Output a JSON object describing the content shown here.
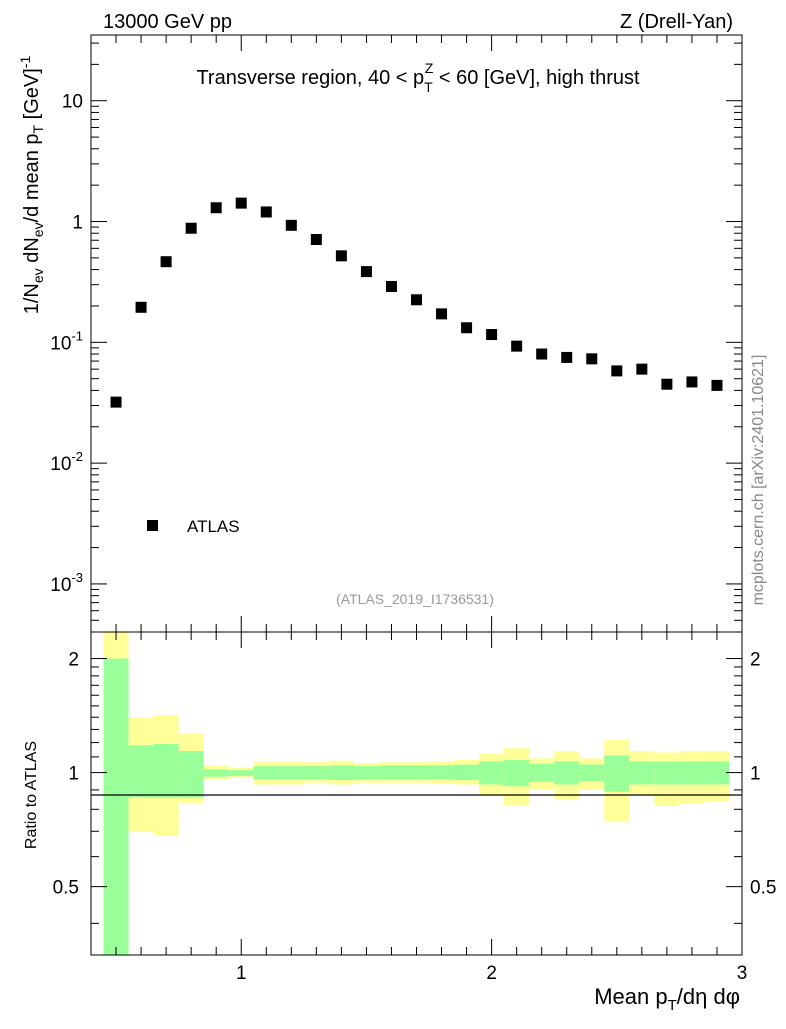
{
  "header": {
    "left": "13000 GeV pp",
    "right": "Z (Drell-Yan)"
  },
  "side_label": "mcplots.cern.ch [arXiv:2401.10621]",
  "reference_label": "(ATLAS_2019_I1736531)",
  "colors": {
    "band_inner": "#99ff99",
    "band_outer": "#ffff99",
    "marker": "#000000"
  },
  "chart_data": [
    {
      "type": "scatter",
      "name": "main",
      "title": "Transverse region, 40 < p_T^Z < 60 [GeV], high thrust",
      "ylabel": "1/N_ev dN_ev/d mean p_T [GeV]^-1",
      "yscale": "log",
      "xlim": [
        0.4,
        3.0
      ],
      "ylim": [
        0.0004,
        35
      ],
      "yticks": [
        {
          "value": 10,
          "label": "10"
        },
        {
          "value": 1,
          "label": "1"
        },
        {
          "value": 0.1,
          "label": "10^-1"
        },
        {
          "value": 0.01,
          "label": "10^-2"
        },
        {
          "value": 0.001,
          "label": "10^-3"
        }
      ],
      "legend": {
        "entry": "ATLAS",
        "position": "lower-left"
      },
      "series": [
        {
          "name": "ATLAS",
          "x": [
            0.5,
            0.6,
            0.7,
            0.8,
            0.9,
            1.0,
            1.1,
            1.2,
            1.3,
            1.4,
            1.5,
            1.6,
            1.7,
            1.8,
            1.9,
            2.0,
            2.1,
            2.2,
            2.3,
            2.4,
            2.5,
            2.6,
            2.7,
            2.8,
            2.9
          ],
          "y": [
            0.032,
            0.195,
            0.465,
            0.88,
            1.3,
            1.42,
            1.2,
            0.93,
            0.71,
            0.52,
            0.385,
            0.29,
            0.225,
            0.172,
            0.132,
            0.116,
            0.093,
            0.08,
            0.075,
            0.073,
            0.058,
            0.06,
            0.045,
            0.047,
            0.044
          ]
        }
      ]
    },
    {
      "type": "area",
      "name": "ratio",
      "ylabel": "Ratio to ATLAS",
      "xlabel": "Mean p_T/dη dφ",
      "xlim": [
        0.4,
        3.0
      ],
      "ylim": [
        0.33,
        2.35
      ],
      "yscale": "log",
      "yticks": [
        {
          "value": 0.5,
          "label": "0.5"
        },
        {
          "value": 1,
          "label": "1"
        },
        {
          "value": 2,
          "label": "2"
        }
      ],
      "xticks": [
        {
          "value": 1,
          "label": "1"
        },
        {
          "value": 2,
          "label": "2"
        },
        {
          "value": 3,
          "label": "3"
        }
      ],
      "bins": [
        {
          "lo": 0.45,
          "hi": 0.55,
          "inner": [
            0.2,
            2.0
          ],
          "outer": [
            0.2,
            2.5
          ]
        },
        {
          "lo": 0.55,
          "hi": 0.65,
          "inner": [
            0.86,
            1.18
          ],
          "outer": [
            0.7,
            1.4
          ]
        },
        {
          "lo": 0.65,
          "hi": 0.75,
          "inner": [
            0.86,
            1.19
          ],
          "outer": [
            0.68,
            1.42
          ]
        },
        {
          "lo": 0.75,
          "hi": 0.85,
          "inner": [
            0.86,
            1.14
          ],
          "outer": [
            0.83,
            1.27
          ]
        },
        {
          "lo": 0.85,
          "hi": 0.95,
          "inner": [
            0.975,
            1.02
          ],
          "outer": [
            0.96,
            1.045
          ]
        },
        {
          "lo": 0.95,
          "hi": 1.05,
          "inner": [
            0.98,
            1.015
          ],
          "outer": [
            0.97,
            1.03
          ]
        },
        {
          "lo": 1.05,
          "hi": 1.15,
          "inner": [
            0.96,
            1.04
          ],
          "outer": [
            0.93,
            1.07
          ]
        },
        {
          "lo": 1.15,
          "hi": 1.25,
          "inner": [
            0.96,
            1.04
          ],
          "outer": [
            0.93,
            1.07
          ]
        },
        {
          "lo": 1.25,
          "hi": 1.35,
          "inner": [
            0.96,
            1.04
          ],
          "outer": [
            0.94,
            1.065
          ]
        },
        {
          "lo": 1.35,
          "hi": 1.45,
          "inner": [
            0.955,
            1.045
          ],
          "outer": [
            0.93,
            1.075
          ]
        },
        {
          "lo": 1.45,
          "hi": 1.55,
          "inner": [
            0.96,
            1.04
          ],
          "outer": [
            0.94,
            1.06
          ]
        },
        {
          "lo": 1.55,
          "hi": 1.65,
          "inner": [
            0.96,
            1.045
          ],
          "outer": [
            0.94,
            1.065
          ]
        },
        {
          "lo": 1.65,
          "hi": 1.75,
          "inner": [
            0.96,
            1.045
          ],
          "outer": [
            0.94,
            1.065
          ]
        },
        {
          "lo": 1.75,
          "hi": 1.85,
          "inner": [
            0.96,
            1.045
          ],
          "outer": [
            0.935,
            1.07
          ]
        },
        {
          "lo": 1.85,
          "hi": 1.95,
          "inner": [
            0.955,
            1.05
          ],
          "outer": [
            0.93,
            1.08
          ]
        },
        {
          "lo": 1.95,
          "hi": 2.05,
          "inner": [
            0.93,
            1.07
          ],
          "outer": [
            0.87,
            1.12
          ]
        },
        {
          "lo": 2.05,
          "hi": 2.15,
          "inner": [
            0.92,
            1.08
          ],
          "outer": [
            0.82,
            1.16
          ]
        },
        {
          "lo": 2.15,
          "hi": 2.25,
          "inner": [
            0.945,
            1.055
          ],
          "outer": [
            0.9,
            1.09
          ]
        },
        {
          "lo": 2.25,
          "hi": 2.35,
          "inner": [
            0.93,
            1.07
          ],
          "outer": [
            0.85,
            1.14
          ]
        },
        {
          "lo": 2.35,
          "hi": 2.45,
          "inner": [
            0.95,
            1.05
          ],
          "outer": [
            0.9,
            1.09
          ]
        },
        {
          "lo": 2.45,
          "hi": 2.55,
          "inner": [
            0.89,
            1.11
          ],
          "outer": [
            0.74,
            1.22
          ]
        },
        {
          "lo": 2.55,
          "hi": 2.65,
          "inner": [
            0.93,
            1.07
          ],
          "outer": [
            0.87,
            1.14
          ]
        },
        {
          "lo": 2.65,
          "hi": 2.75,
          "inner": [
            0.93,
            1.07
          ],
          "outer": [
            0.82,
            1.13
          ]
        },
        {
          "lo": 2.75,
          "hi": 2.85,
          "inner": [
            0.93,
            1.07
          ],
          "outer": [
            0.83,
            1.14
          ]
        },
        {
          "lo": 2.85,
          "hi": 2.95,
          "inner": [
            0.93,
            1.07
          ],
          "outer": [
            0.84,
            1.14
          ]
        }
      ]
    }
  ]
}
